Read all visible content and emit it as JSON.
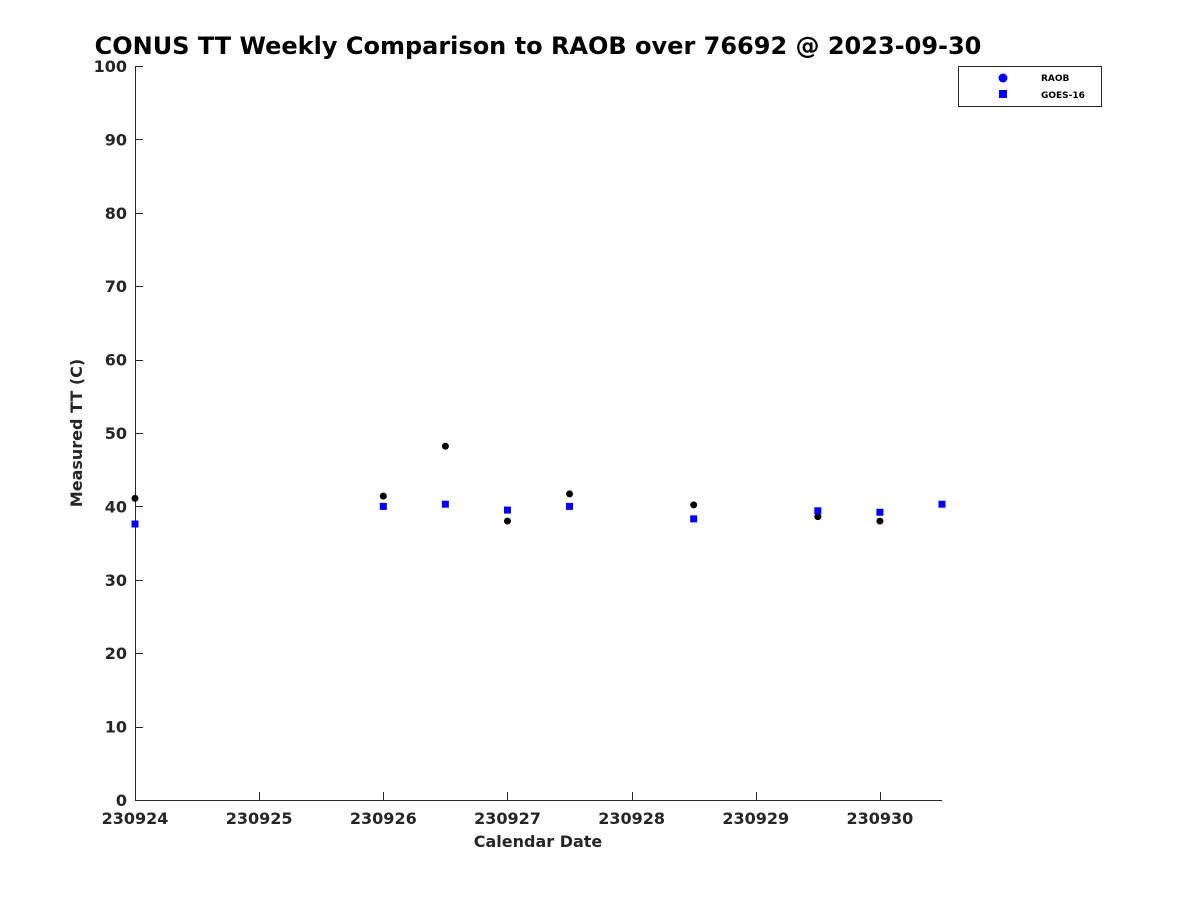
{
  "chart_data": {
    "type": "scatter",
    "title": "CONUS TT Weekly Comparison to RAOB over 76692 @ 2023-09-30",
    "xlabel": "Calendar Date",
    "ylabel": "Measured TT (C)",
    "xlim": [
      "2023-09-24",
      "2023-09-30T12:00"
    ],
    "ylim": [
      0,
      100
    ],
    "x_ticks": [
      {
        "date": "2023-09-24",
        "label": "230924"
      },
      {
        "date": "2023-09-25",
        "label": "230925"
      },
      {
        "date": "2023-09-26",
        "label": "230926"
      },
      {
        "date": "2023-09-27",
        "label": "230927"
      },
      {
        "date": "2023-09-28",
        "label": "230928"
      },
      {
        "date": "2023-09-29",
        "label": "230929"
      },
      {
        "date": "2023-09-30",
        "label": "230930"
      }
    ],
    "y_ticks": [
      0,
      10,
      20,
      30,
      40,
      50,
      60,
      70,
      80,
      90,
      100
    ],
    "grid": false,
    "legend_position": "top-right",
    "series": [
      {
        "name": "RAOB",
        "marker": "circle",
        "color": "#000000",
        "legend_color": "#0000ff",
        "points": [
          {
            "x": "2023-09-24T00:00",
            "y": 41.1
          },
          {
            "x": "2023-09-26T00:00",
            "y": 41.4
          },
          {
            "x": "2023-09-26T12:00",
            "y": 48.2
          },
          {
            "x": "2023-09-27T00:00",
            "y": 38.0
          },
          {
            "x": "2023-09-27T12:00",
            "y": 41.7
          },
          {
            "x": "2023-09-28T12:00",
            "y": 40.2
          },
          {
            "x": "2023-09-29T12:00",
            "y": 38.6
          },
          {
            "x": "2023-09-30T00:00",
            "y": 38.0
          }
        ]
      },
      {
        "name": "GOES-16",
        "marker": "square",
        "color": "#0000ff",
        "legend_color": "#0000ff",
        "points": [
          {
            "x": "2023-09-24T00:00",
            "y": 37.6
          },
          {
            "x": "2023-09-26T00:00",
            "y": 40.0
          },
          {
            "x": "2023-09-26T12:00",
            "y": 40.3
          },
          {
            "x": "2023-09-27T00:00",
            "y": 39.5
          },
          {
            "x": "2023-09-27T12:00",
            "y": 40.0
          },
          {
            "x": "2023-09-28T12:00",
            "y": 38.3
          },
          {
            "x": "2023-09-29T12:00",
            "y": 39.4
          },
          {
            "x": "2023-09-30T00:00",
            "y": 39.2
          },
          {
            "x": "2023-09-30T12:00",
            "y": 40.3
          }
        ]
      }
    ]
  }
}
